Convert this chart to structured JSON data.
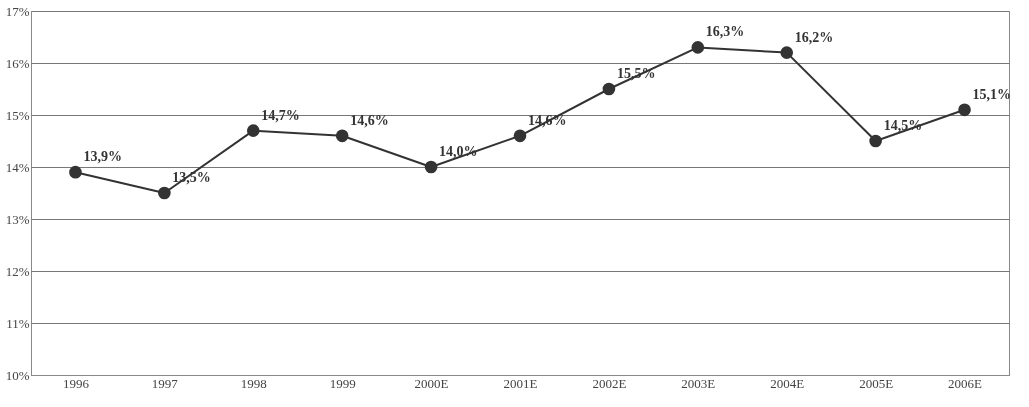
{
  "chart_data": {
    "type": "line",
    "categories": [
      "1996",
      "1997",
      "1998",
      "1999",
      "2000E",
      "2001E",
      "2002E",
      "2003E",
      "2004E",
      "2005E",
      "2006E"
    ],
    "series": [
      {
        "color": "#333333",
        "values": [
          13.9,
          13.5,
          14.7,
          14.6,
          14.0,
          14.6,
          15.5,
          16.3,
          16.2,
          14.5,
          15.1
        ]
      }
    ],
    "value_labels": [
      "13,9%",
      "13,5%",
      "14,7%",
      "14,6%",
      "14,0%",
      "14,6%",
      "15,5%",
      "16,3%",
      "16,2%",
      "14,5%",
      "15,1%"
    ],
    "ylim": [
      10,
      17
    ],
    "yticks": [
      {
        "value": 10,
        "label": "10%"
      },
      {
        "value": 11,
        "label": "11%"
      },
      {
        "value": 12,
        "label": "12%"
      },
      {
        "value": 13,
        "label": "13%"
      },
      {
        "value": 14,
        "label": "14%"
      },
      {
        "value": 15,
        "label": "15%"
      },
      {
        "value": 16,
        "label": "16%"
      },
      {
        "value": 17,
        "label": "17%"
      }
    ],
    "grid": "y",
    "marker": "circle",
    "line_style": "solid"
  }
}
